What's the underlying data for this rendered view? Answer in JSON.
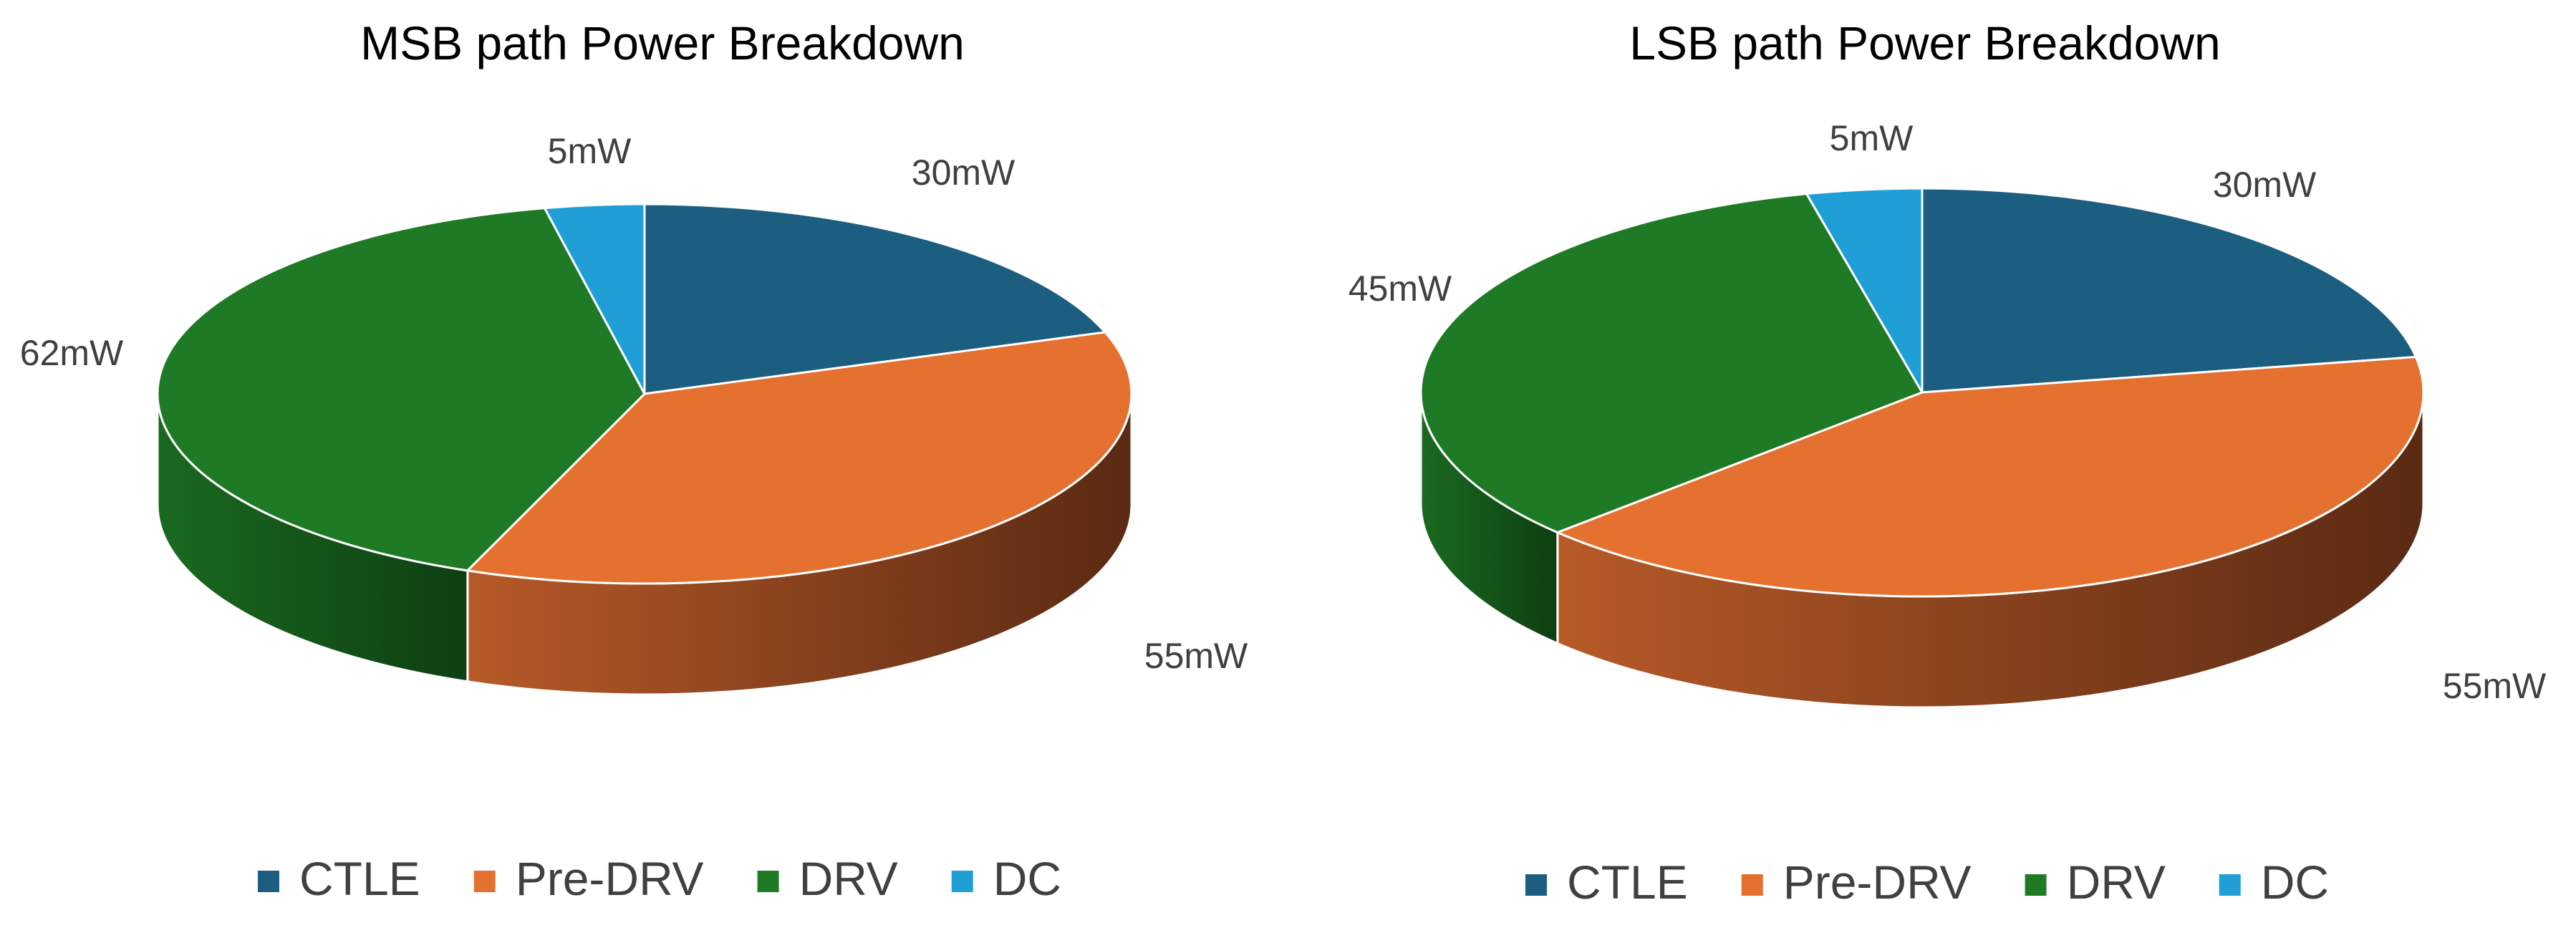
{
  "legend": [
    "CTLE",
    "Pre-DRV",
    "DRV",
    "DC"
  ],
  "colors": {
    "CTLE": "#1B5E80",
    "Pre-DRV": "#E57131",
    "DRV": "#1E7A25",
    "DC": "#1F9FD6"
  },
  "chart_data": [
    {
      "type": "pie",
      "variant": "3d",
      "title": "MSB path Power Breakdown",
      "categories": [
        "CTLE",
        "Pre-DRV",
        "DRV",
        "DC"
      ],
      "values": [
        30,
        55,
        62,
        5
      ],
      "labels": [
        "30mW",
        "55mW",
        "62mW",
        "5mW"
      ],
      "legend_position": "bottom"
    },
    {
      "type": "pie",
      "variant": "3d",
      "title": "LSB path Power Breakdown",
      "categories": [
        "CTLE",
        "Pre-DRV",
        "DRV",
        "DC"
      ],
      "values": [
        30,
        55,
        45,
        5
      ],
      "labels": [
        "30mW",
        "55mW",
        "45mW",
        "5mW"
      ],
      "legend_position": "bottom"
    }
  ]
}
